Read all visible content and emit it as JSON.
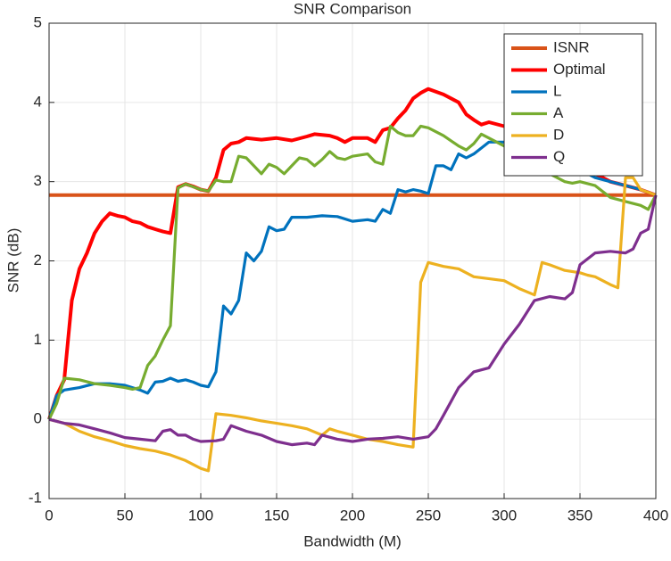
{
  "chart_data": {
    "type": "line",
    "title": "SNR Comparison",
    "xlabel": "Bandwidth (M)",
    "ylabel": "SNR (dB)",
    "xlim": [
      0,
      400
    ],
    "xticks": [
      0,
      50,
      100,
      150,
      200,
      250,
      300,
      350,
      400
    ],
    "ylim": [
      -1,
      5
    ],
    "yticks": [
      -1,
      0,
      1,
      2,
      3,
      4,
      5
    ],
    "grid": true,
    "legend": "northeast",
    "series": [
      {
        "name": "ISNR",
        "color": "#d95319",
        "x": [
          0,
          400
        ],
        "values": [
          2.83,
          2.83
        ]
      },
      {
        "name": "Optimal",
        "color": "#ff0000",
        "x": [
          0,
          5,
          10,
          15,
          20,
          25,
          30,
          35,
          40,
          45,
          50,
          55,
          60,
          65,
          70,
          75,
          80,
          85,
          90,
          95,
          100,
          105,
          110,
          115,
          120,
          125,
          130,
          140,
          150,
          160,
          170,
          175,
          185,
          190,
          195,
          200,
          210,
          215,
          220,
          225,
          230,
          235,
          240,
          245,
          250,
          260,
          270,
          275,
          280,
          285,
          290,
          300,
          310,
          320,
          330,
          340,
          350,
          360,
          370,
          380,
          390,
          400
        ],
        "values": [
          0,
          0.3,
          0.5,
          1.5,
          1.9,
          2.1,
          2.35,
          2.5,
          2.6,
          2.57,
          2.55,
          2.5,
          2.48,
          2.43,
          2.4,
          2.37,
          2.35,
          2.93,
          2.97,
          2.94,
          2.9,
          2.88,
          3.05,
          3.4,
          3.48,
          3.5,
          3.55,
          3.53,
          3.55,
          3.52,
          3.57,
          3.6,
          3.58,
          3.55,
          3.5,
          3.55,
          3.55,
          3.5,
          3.65,
          3.68,
          3.8,
          3.9,
          4.05,
          4.12,
          4.17,
          4.1,
          4.0,
          3.85,
          3.78,
          3.72,
          3.75,
          3.7,
          3.6,
          3.55,
          3.45,
          3.3,
          3.2,
          3.1,
          3.0,
          2.95,
          2.9,
          2.83
        ]
      },
      {
        "name": "L",
        "color": "#0072bd",
        "x": [
          0,
          5,
          10,
          20,
          30,
          40,
          50,
          55,
          60,
          65,
          70,
          75,
          80,
          85,
          90,
          95,
          100,
          105,
          110,
          115,
          120,
          125,
          130,
          135,
          140,
          145,
          150,
          155,
          160,
          170,
          180,
          190,
          200,
          210,
          215,
          220,
          225,
          230,
          235,
          240,
          245,
          250,
          255,
          260,
          265,
          270,
          275,
          280,
          290,
          300,
          310,
          320,
          330,
          340,
          350,
          360,
          370,
          380,
          390,
          400
        ],
        "values": [
          0,
          0.3,
          0.37,
          0.4,
          0.45,
          0.45,
          0.43,
          0.4,
          0.37,
          0.33,
          0.47,
          0.48,
          0.52,
          0.48,
          0.5,
          0.47,
          0.43,
          0.41,
          0.6,
          1.43,
          1.33,
          1.5,
          2.1,
          2.0,
          2.12,
          2.43,
          2.38,
          2.4,
          2.55,
          2.55,
          2.57,
          2.56,
          2.5,
          2.52,
          2.5,
          2.65,
          2.6,
          2.9,
          2.87,
          2.9,
          2.88,
          2.85,
          3.2,
          3.2,
          3.15,
          3.35,
          3.3,
          3.35,
          3.5,
          3.5,
          3.45,
          3.4,
          3.35,
          3.25,
          3.15,
          3.05,
          3.0,
          2.95,
          2.9,
          2.83
        ]
      },
      {
        "name": "A",
        "color": "#77ac30",
        "x": [
          0,
          5,
          10,
          20,
          30,
          40,
          50,
          55,
          60,
          65,
          70,
          75,
          80,
          85,
          90,
          100,
          105,
          110,
          115,
          120,
          125,
          130,
          135,
          140,
          145,
          150,
          155,
          160,
          165,
          170,
          175,
          180,
          185,
          190,
          195,
          200,
          210,
          215,
          220,
          225,
          230,
          235,
          240,
          245,
          250,
          260,
          270,
          275,
          280,
          285,
          290,
          300,
          310,
          320,
          330,
          340,
          345,
          350,
          360,
          370,
          380,
          390,
          395,
          400
        ],
        "values": [
          0,
          0.2,
          0.52,
          0.5,
          0.45,
          0.43,
          0.4,
          0.38,
          0.4,
          0.68,
          0.8,
          1.0,
          1.18,
          2.92,
          2.97,
          2.9,
          2.88,
          3.02,
          3.0,
          3.0,
          3.32,
          3.3,
          3.2,
          3.1,
          3.22,
          3.18,
          3.1,
          3.2,
          3.3,
          3.28,
          3.2,
          3.28,
          3.38,
          3.3,
          3.28,
          3.32,
          3.35,
          3.25,
          3.22,
          3.7,
          3.62,
          3.58,
          3.58,
          3.7,
          3.68,
          3.58,
          3.45,
          3.4,
          3.48,
          3.6,
          3.55,
          3.45,
          3.35,
          3.2,
          3.1,
          3.0,
          2.98,
          3.0,
          2.95,
          2.8,
          2.75,
          2.7,
          2.65,
          2.83
        ]
      },
      {
        "name": "D",
        "color": "#edb120",
        "x": [
          0,
          10,
          20,
          30,
          40,
          50,
          60,
          70,
          80,
          90,
          100,
          105,
          110,
          120,
          130,
          140,
          150,
          160,
          170,
          180,
          185,
          190,
          200,
          210,
          220,
          230,
          240,
          245,
          250,
          260,
          270,
          280,
          300,
          310,
          320,
          325,
          330,
          340,
          350,
          355,
          360,
          365,
          370,
          375,
          380,
          385,
          390,
          400
        ],
        "values": [
          0,
          -0.05,
          -0.15,
          -0.22,
          -0.27,
          -0.33,
          -0.37,
          -0.4,
          -0.45,
          -0.52,
          -0.62,
          -0.65,
          0.07,
          0.05,
          0.02,
          -0.02,
          -0.05,
          -0.08,
          -0.12,
          -0.2,
          -0.12,
          -0.15,
          -0.2,
          -0.25,
          -0.28,
          -0.32,
          -0.35,
          1.73,
          1.98,
          1.93,
          1.9,
          1.8,
          1.75,
          1.65,
          1.57,
          1.98,
          1.95,
          1.88,
          1.85,
          1.82,
          1.8,
          1.75,
          1.7,
          1.66,
          3.05,
          3.05,
          2.9,
          2.83
        ]
      },
      {
        "name": "Q",
        "color": "#7e2f8e",
        "x": [
          0,
          10,
          20,
          30,
          40,
          50,
          60,
          70,
          75,
          80,
          85,
          90,
          95,
          100,
          110,
          115,
          120,
          130,
          140,
          150,
          160,
          170,
          175,
          180,
          190,
          200,
          210,
          220,
          230,
          240,
          250,
          255,
          260,
          270,
          280,
          290,
          295,
          300,
          310,
          320,
          330,
          340,
          345,
          350,
          360,
          370,
          380,
          385,
          390,
          395,
          400
        ],
        "values": [
          0,
          -0.05,
          -0.07,
          -0.12,
          -0.17,
          -0.23,
          -0.25,
          -0.27,
          -0.15,
          -0.13,
          -0.2,
          -0.2,
          -0.25,
          -0.28,
          -0.27,
          -0.25,
          -0.08,
          -0.15,
          -0.2,
          -0.28,
          -0.32,
          -0.3,
          -0.32,
          -0.2,
          -0.25,
          -0.28,
          -0.25,
          -0.24,
          -0.22,
          -0.25,
          -0.22,
          -0.12,
          0.05,
          0.4,
          0.6,
          0.65,
          0.8,
          0.95,
          1.2,
          1.5,
          1.55,
          1.52,
          1.6,
          1.95,
          2.1,
          2.12,
          2.1,
          2.15,
          2.35,
          2.4,
          2.83
        ]
      }
    ]
  }
}
